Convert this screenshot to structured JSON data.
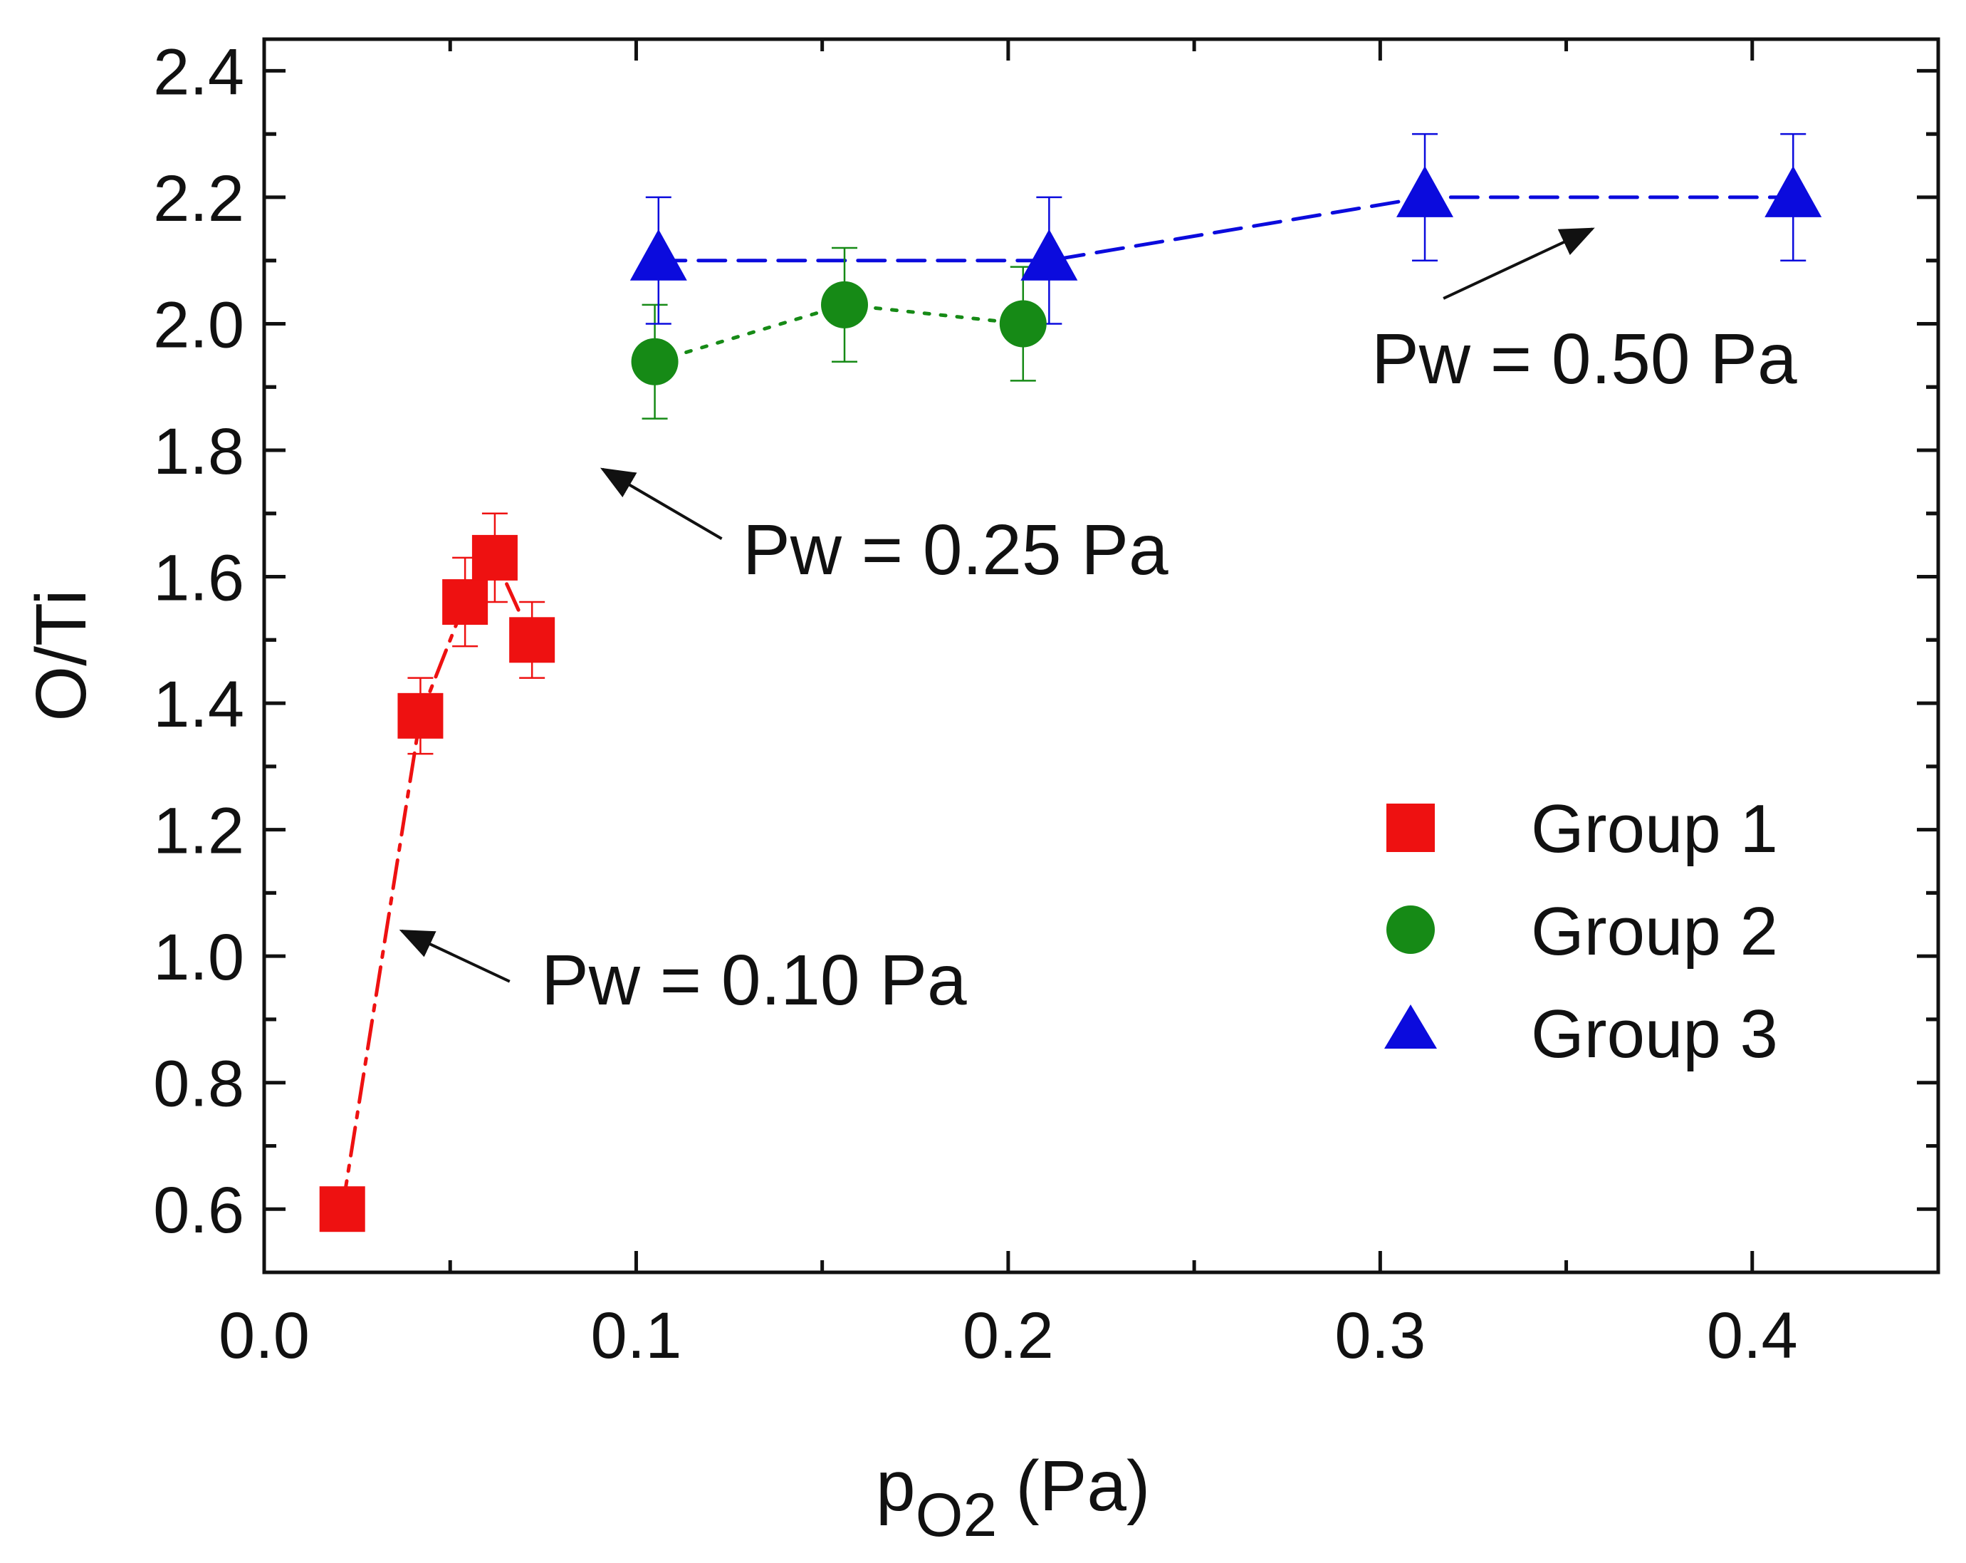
{
  "chart_data": {
    "type": "scatter",
    "title": "",
    "xlabel": {
      "base": "p",
      "sub": "O2",
      "unit": "(Pa)"
    },
    "ylabel": "O/Ti",
    "xlim": [
      0.0,
      0.45
    ],
    "ylim": [
      0.5,
      2.45
    ],
    "xticks": [
      0.0,
      0.1,
      0.2,
      0.3,
      0.4
    ],
    "xtick_labels": [
      "0.0",
      "0.1",
      "0.2",
      "0.3",
      "0.4"
    ],
    "yticks": [
      0.6,
      0.8,
      1.0,
      1.2,
      1.4,
      1.6,
      1.8,
      2.0,
      2.2,
      2.4
    ],
    "ytick_labels": [
      "0.6",
      "0.8",
      "1.0",
      "1.2",
      "1.4",
      "1.6",
      "1.8",
      "2.0",
      "2.2",
      "2.4"
    ],
    "grid": false,
    "legend_position": "right-center",
    "series": [
      {
        "name": "Group 1",
        "marker": "square",
        "color": "#ee1111",
        "line": "dash-dot",
        "x": [
          0.021,
          0.042,
          0.054,
          0.062,
          0.072
        ],
        "y": [
          0.6,
          1.38,
          1.56,
          1.63,
          1.5
        ],
        "err": [
          0.0,
          0.06,
          0.07,
          0.07,
          0.06
        ]
      },
      {
        "name": "Group 2",
        "marker": "circle",
        "color": "#168a16",
        "line": "dotted",
        "x": [
          0.105,
          0.156,
          0.204
        ],
        "y": [
          1.94,
          2.03,
          2.0
        ],
        "err": [
          0.09,
          0.09,
          0.09
        ]
      },
      {
        "name": "Group 3",
        "marker": "triangle",
        "color": "#0b0bdd",
        "line": "dashed",
        "x": [
          0.106,
          0.211,
          0.312,
          0.411
        ],
        "y": [
          2.1,
          2.1,
          2.2,
          2.2
        ],
        "err": [
          0.1,
          0.1,
          0.1,
          0.1
        ]
      }
    ],
    "annotations": [
      {
        "text": "Pw = 0.10 Pa",
        "arrow_to": [
          0.037,
          1.04
        ],
        "arrow_from": [
          0.066,
          0.96
        ]
      },
      {
        "text": "Pw = 0.25 Pa",
        "arrow_to": [
          0.091,
          1.77
        ],
        "arrow_from": [
          0.123,
          1.66
        ]
      },
      {
        "text": "Pw = 0.50 Pa",
        "arrow_to": [
          0.357,
          2.15
        ],
        "arrow_from": [
          0.317,
          2.04
        ]
      }
    ]
  }
}
